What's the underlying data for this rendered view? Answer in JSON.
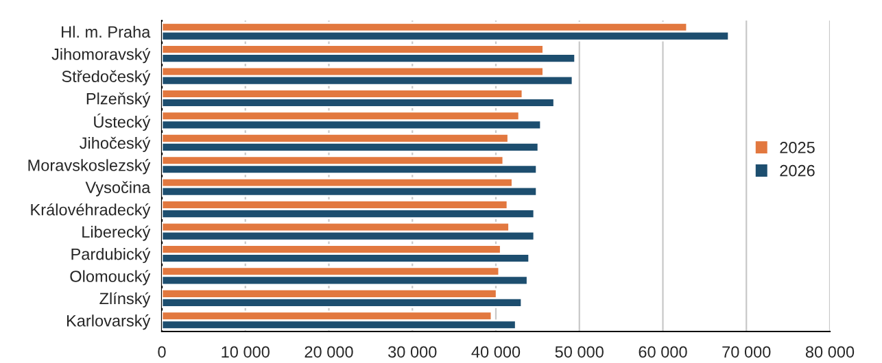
{
  "chart_data": {
    "type": "bar",
    "orientation": "horizontal",
    "categories": [
      "Hl. m. Praha",
      "Jihomoravský",
      "Středočeský",
      "Plzeňský",
      "Ústecký",
      "Jihočeský",
      "Moravskoslezský",
      "Vysočina",
      "Královéhradecký",
      "Liberecký",
      "Pardubický",
      "Olomoucký",
      "Zlínský",
      "Karlovarský"
    ],
    "series": [
      {
        "name": "2025",
        "color": "#e2783f",
        "values": [
          62900,
          45700,
          45700,
          43200,
          42800,
          41500,
          40900,
          42000,
          41400,
          41600,
          40600,
          40400,
          40100,
          39500
        ]
      },
      {
        "name": "2026",
        "color": "#1d4e6f",
        "values": [
          67900,
          49500,
          49200,
          47000,
          45400,
          45100,
          44900,
          44900,
          44600,
          44600,
          44000,
          43800,
          43100,
          42400
        ]
      }
    ],
    "xlim": [
      0,
      80000
    ],
    "xticks": [
      0,
      {
        "value": 10000,
        "label": "10 000"
      },
      {
        "value": 20000,
        "label": "20 000"
      },
      {
        "value": 30000,
        "label": "30 000"
      },
      {
        "value": 40000,
        "label": "40 000"
      },
      {
        "value": 50000,
        "label": "50 000"
      },
      {
        "value": 60000,
        "label": "60 000"
      },
      {
        "value": 70000,
        "label": "70 000"
      },
      {
        "value": 80000,
        "label": "80 000"
      }
    ],
    "grid": "x",
    "legend": "right"
  }
}
